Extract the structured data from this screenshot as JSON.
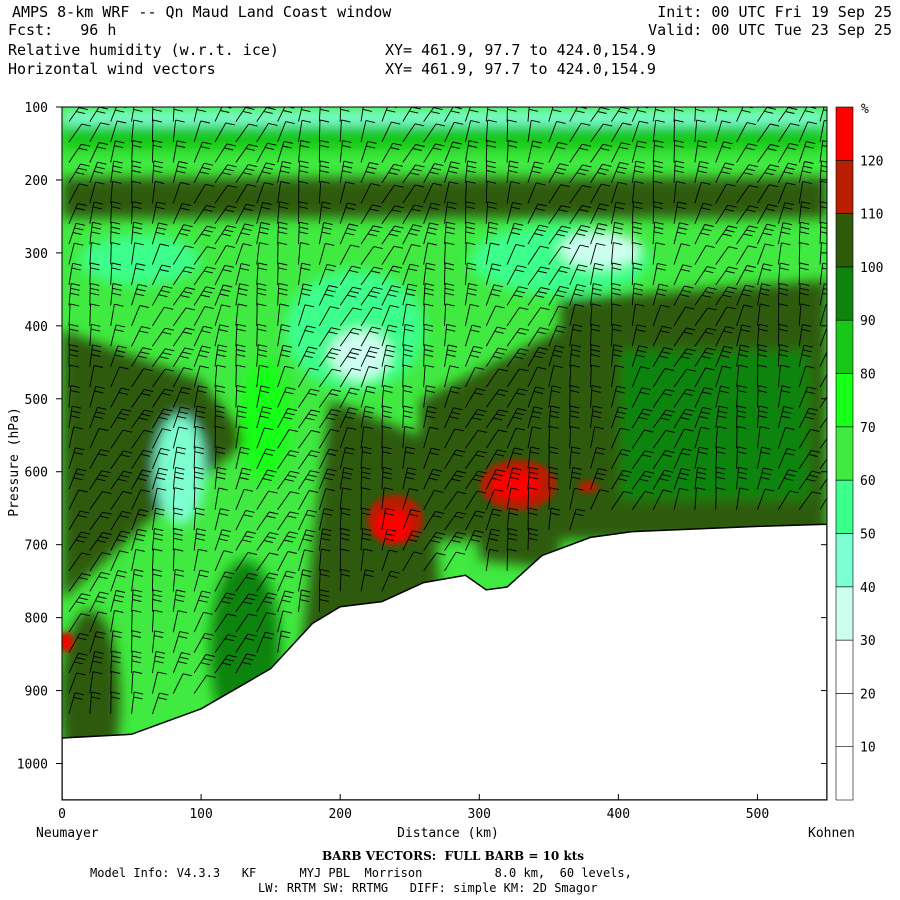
{
  "header": {
    "title": "AMPS 8-km WRF -- Qn Maud Land Coast window",
    "init": "Init: 00 UTC Fri 19 Sep 25",
    "fcst": "Fcst:   96 h",
    "valid": "Valid: 00 UTC Tue 23 Sep 25",
    "field1": "Relative humidity (w.r.t. ice)",
    "field2": "Horizontal wind vectors",
    "xy1": "XY= 461.9, 97.7 to 424.0,154.9",
    "xy2": "XY= 461.9, 97.7 to 424.0,154.9"
  },
  "chart_data": {
    "type": "heatmap",
    "title": "Relative humidity (w.r.t. ice)",
    "xlabel": "Distance (km)",
    "ylabel": "Pressure (hPa)",
    "xlim": [
      0,
      550
    ],
    "ylim": [
      1050,
      100
    ],
    "y_scale": "linear, inverted",
    "x_ticks": [
      0,
      100,
      200,
      300,
      400,
      500
    ],
    "y_ticks": [
      100,
      200,
      300,
      400,
      500,
      600,
      700,
      800,
      900,
      1000
    ],
    "x_endpoint_labels": {
      "left": "Neumayer",
      "right": "Kohnen"
    },
    "colorbar": {
      "unit": "%",
      "levels": [
        10,
        20,
        30,
        40,
        50,
        60,
        70,
        80,
        90,
        100,
        110,
        120
      ],
      "colors": [
        "#ffffff",
        "#ffffff",
        "#ffffff",
        "#cdfff0",
        "#7dffd2",
        "#3cff8c",
        "#40ea40",
        "#18ff18",
        "#18c818",
        "#0e840e",
        "#2f5a0a",
        "#b81e00",
        "#ff0000"
      ]
    },
    "terrain_surface_hPa": {
      "x": [
        0,
        50,
        100,
        150,
        180,
        200,
        230,
        260,
        290,
        305,
        320,
        345,
        380,
        410,
        500,
        550
      ],
      "p": [
        965,
        960,
        925,
        870,
        808,
        785,
        778,
        752,
        742,
        762,
        758,
        715,
        690,
        682,
        675,
        672
      ]
    },
    "rh_field_regions": [
      {
        "label": "near-saturated (100-110%) band",
        "x": [
          0,
          550
        ],
        "p": [
          180,
          260
        ]
      },
      {
        "label": "dry tongue (30-60%)",
        "x": [
          200,
          420
        ],
        "p": [
          280,
          470
        ]
      },
      {
        "label": "dry slot (40-60%)",
        "x": [
          70,
          110
        ],
        "p": [
          500,
          640
        ]
      },
      {
        "label": "supersaturation >120%",
        "x": [
          215,
          245
        ],
        "p": [
          620,
          700
        ]
      },
      {
        "label": "supersaturation >120%",
        "x": [
          300,
          345
        ],
        "p": [
          590,
          660
        ]
      },
      {
        "label": "supersaturation >120%",
        "x": [
          0,
          8
        ],
        "p": [
          820,
          850
        ]
      },
      {
        "label": "supersaturation >120%",
        "x": [
          375,
          390
        ],
        "p": [
          615,
          630
        ]
      }
    ],
    "wind_barbs": {
      "note": "BARB VECTORS:  FULL BARB = 10 kts"
    }
  },
  "footer": {
    "barb_note": "BARB VECTORS:  FULL BARB = 10 kts",
    "model_line": "Model Info: V4.3.3   KF      MYJ PBL  Morrison          8.0 km,  60 levels,",
    "physics_line": "LW: RRTM SW: RRTMG   DIFF: simple KM: 2D Smagor"
  },
  "labels": {
    "pct": "%",
    "distance": "Distance (km)",
    "pressure": "Pressure (hPa)",
    "left_end": "Neumayer",
    "right_end": "Kohnen"
  }
}
